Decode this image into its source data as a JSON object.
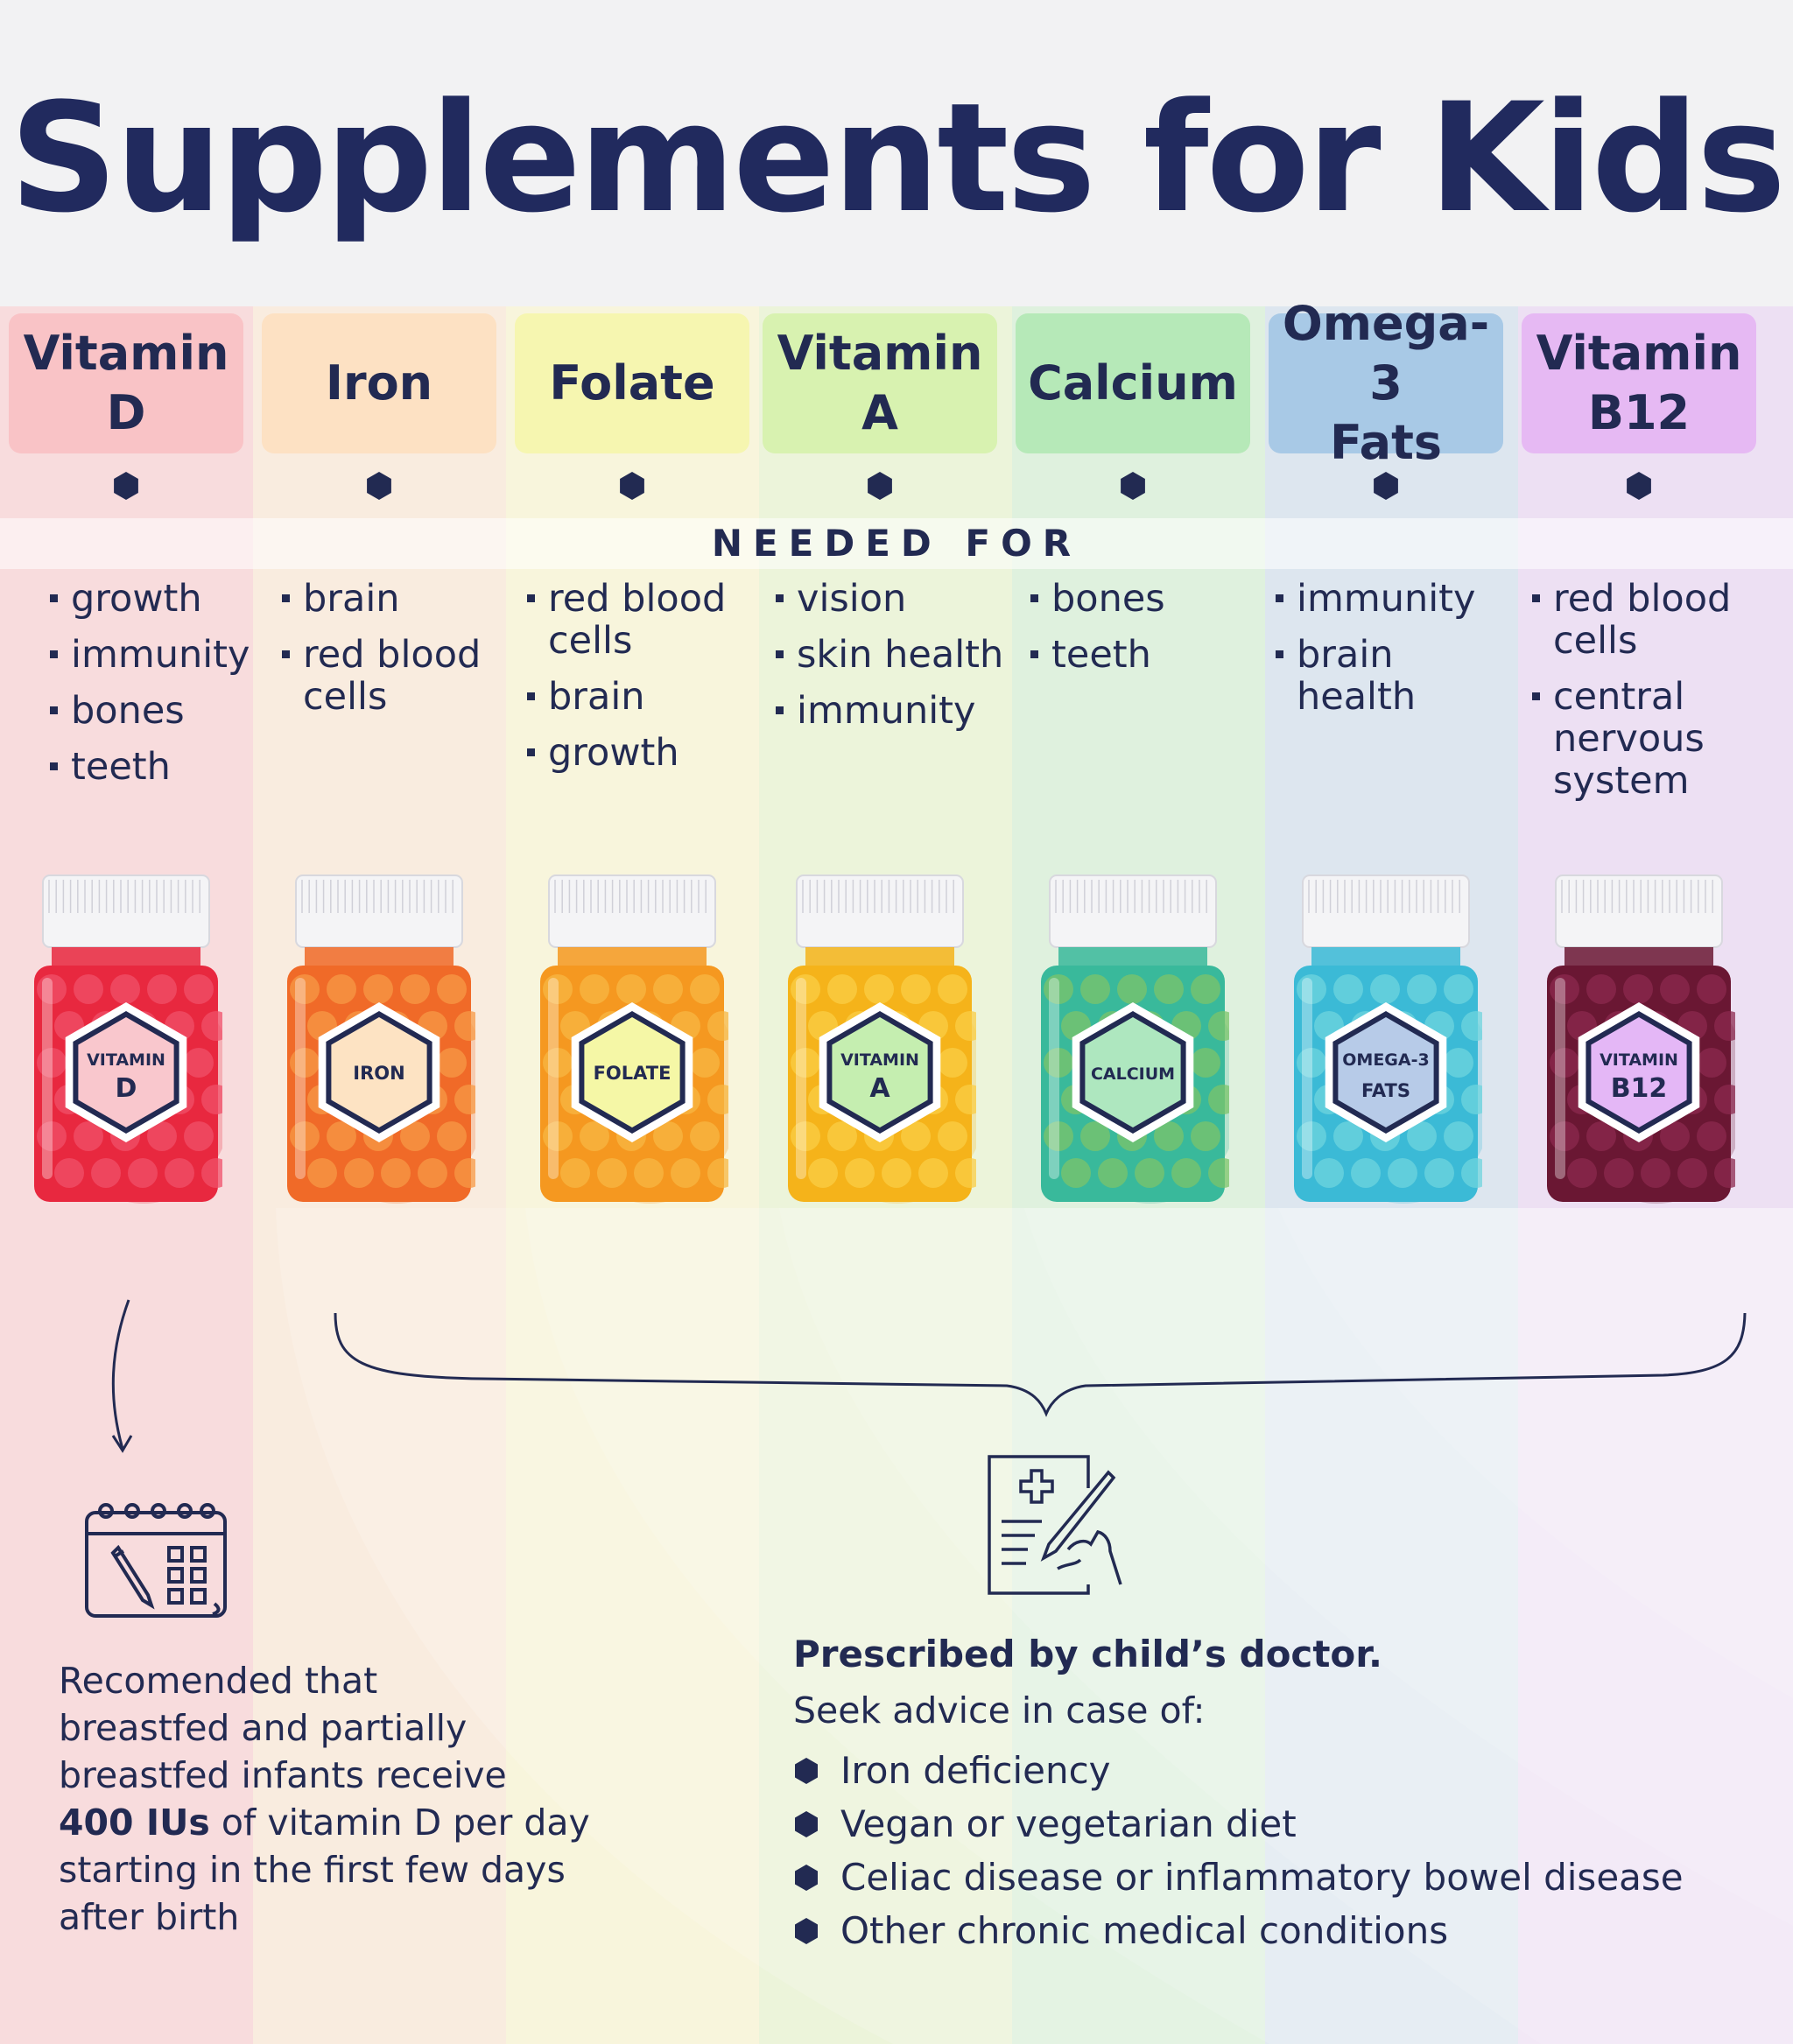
{
  "title": "Supplements for Kids",
  "needed_for_label": "NEEDED FOR",
  "columns": [
    {
      "header": [
        "Vitamin",
        "D"
      ],
      "needs": [
        "growth",
        "immunity",
        "bones",
        "teeth"
      ],
      "label": [
        "VITAMIN",
        "D"
      ],
      "band_color": "#f8dcdd",
      "header_color": "#f9c3c6",
      "label_color": "#f9c7cd",
      "bottle_color": "#e8283f",
      "pill_color": "#f0506a"
    },
    {
      "header": [
        "Iron"
      ],
      "needs": [
        "brain",
        "red blood cells"
      ],
      "label": [
        "IRON"
      ],
      "band_color": "#f9ecdf",
      "header_color": "#fde1c3",
      "label_color": "#fde3c3",
      "bottle_color": "#f06a28",
      "pill_color": "#f79a45"
    },
    {
      "header": [
        "Folate"
      ],
      "needs": [
        "red blood cells",
        "brain",
        "growth"
      ],
      "label": [
        "FOLATE"
      ],
      "band_color": "#f8f5dc",
      "header_color": "#f6f6b0",
      "label_color": "#f5f7a6",
      "bottle_color": "#f59820",
      "pill_color": "#f7b743"
    },
    {
      "header": [
        "Vitamin",
        "A"
      ],
      "needs": [
        "vision",
        "skin health",
        "immunity"
      ],
      "label": [
        "VITAMIN",
        "A"
      ],
      "band_color": "#ecf4da",
      "header_color": "#d8f2b0",
      "label_color": "#c5eeb0",
      "bottle_color": "#f5b31a",
      "pill_color": "#f9cd45"
    },
    {
      "header": [
        "Calcium"
      ],
      "needs": [
        "bones",
        "teeth"
      ],
      "label": [
        "CALCIUM"
      ],
      "band_color": "#dff1de",
      "header_color": "#b6e9b8",
      "label_color": "#aee7bf",
      "bottle_color": "#39b99b",
      "pill_color": "#7cc46a"
    },
    {
      "header": [
        "Omega-3",
        "Fats"
      ],
      "needs": [
        "immunity",
        "brain health"
      ],
      "label": [
        "OMEGA-3",
        "FATS"
      ],
      "band_color": "#dde6ef",
      "header_color": "#a8c9e6",
      "label_color": "#b7cbe8",
      "bottle_color": "#3bbad6",
      "pill_color": "#6fd4de"
    },
    {
      "header": [
        "Vitamin",
        "B12"
      ],
      "needs": [
        "red blood cells",
        "central nervous system"
      ],
      "label": [
        "VITAMIN",
        "B12"
      ],
      "band_color": "#ede0f3",
      "header_color": "#e6b9f3",
      "label_color": "#e4b7f6",
      "bottle_color": "#6a1733",
      "pill_color": "#8c2a4f"
    }
  ],
  "note_left": {
    "line1": "Recomended that",
    "line2": "breastfed and partially",
    "line3": "breastfed infants receive",
    "bold": "400 IUs",
    "line4_rest": " of vitamin D per day",
    "line5": "starting in the first few days",
    "line6": "after birth"
  },
  "note_right": {
    "title": "Prescribed by child’s doctor.",
    "subtitle": "Seek advice in case of:",
    "items": [
      "Iron deficiency",
      "Vegan or vegetarian diet",
      "Celiac disease or inflammatory bowel disease",
      "Other chronic medical conditions"
    ]
  },
  "icons": {
    "left": "calendar-pencil-icon",
    "right": "prescription-clipboard-icon"
  },
  "colors": {
    "text": "#222a52",
    "title": "#212a5e",
    "background": "#f2f2f3"
  }
}
